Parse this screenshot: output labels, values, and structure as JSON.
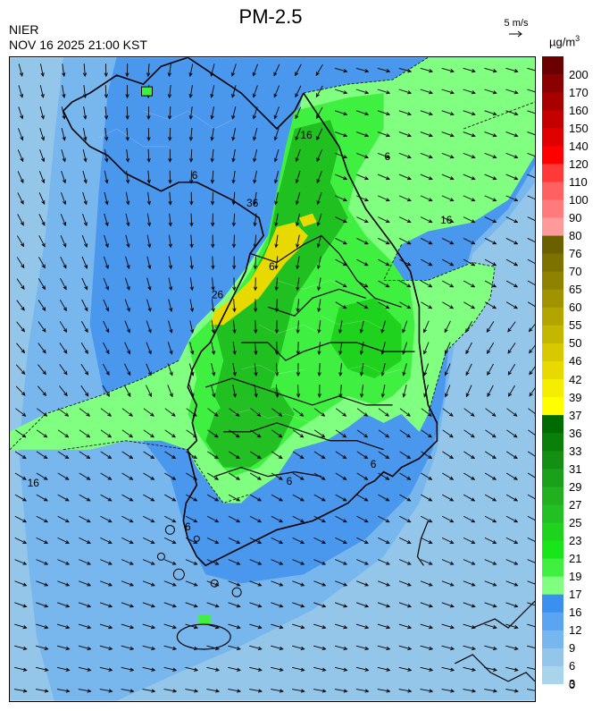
{
  "header": {
    "title": "PM-2.5",
    "agency": "NIER",
    "datetime": "NOV 16 2025 21:00 KST",
    "wind_ref": "5 m/s",
    "unit_base": "µg/m",
    "unit_exp": "3"
  },
  "legend": {
    "ticks": [
      "200",
      "170",
      "160",
      "150",
      "140",
      "120",
      "110",
      "100",
      "90",
      "80",
      "76",
      "70",
      "65",
      "60",
      "55",
      "50",
      "46",
      "42",
      "39",
      "37",
      "36",
      "33",
      "31",
      "29",
      "27",
      "25",
      "23",
      "21",
      "19",
      "17",
      "16",
      "12",
      "9",
      "6",
      "3",
      "0"
    ],
    "colors": [
      "#6b0000",
      "#8b0000",
      "#a80000",
      "#c40000",
      "#e00000",
      "#ff0000",
      "#ff3838",
      "#ff6060",
      "#ff7a7a",
      "#ff9a9a",
      "#6b6000",
      "#7d7100",
      "#8f8200",
      "#a19300",
      "#b3a400",
      "#c5b600",
      "#d7c800",
      "#e8da00",
      "#f6ee00",
      "#ffff00",
      "#006b00",
      "#0a7f0a",
      "#148f14",
      "#1aa01a",
      "#20b020",
      "#22c022",
      "#1ed21e",
      "#18e618",
      "#40f040",
      "#80ff80",
      "#3a8ff0",
      "#5aa4f2",
      "#78b6ee",
      "#94c6ea",
      "#a8d4ec"
    ]
  },
  "map_labels": [
    {
      "text": "16",
      "lat": 38.33,
      "lon": 128.05
    },
    {
      "text": "16",
      "lat": 37.42,
      "lon": 130.05
    },
    {
      "text": "36",
      "lat": 37.6,
      "lon": 127.28
    },
    {
      "text": "26",
      "lat": 36.62,
      "lon": 126.78
    },
    {
      "text": "16",
      "lat": 34.6,
      "lon": 124.15
    },
    {
      "text": "6",
      "lat": 37.9,
      "lon": 126.5
    },
    {
      "text": "6",
      "lat": 38.1,
      "lon": 129.25
    },
    {
      "text": "6",
      "lat": 36.92,
      "lon": 127.6
    },
    {
      "text": "6",
      "lat": 34.62,
      "lon": 127.85
    },
    {
      "text": "6",
      "lat": 34.13,
      "lon": 126.4
    },
    {
      "text": "6",
      "lat": 34.8,
      "lon": 129.05
    }
  ]
}
